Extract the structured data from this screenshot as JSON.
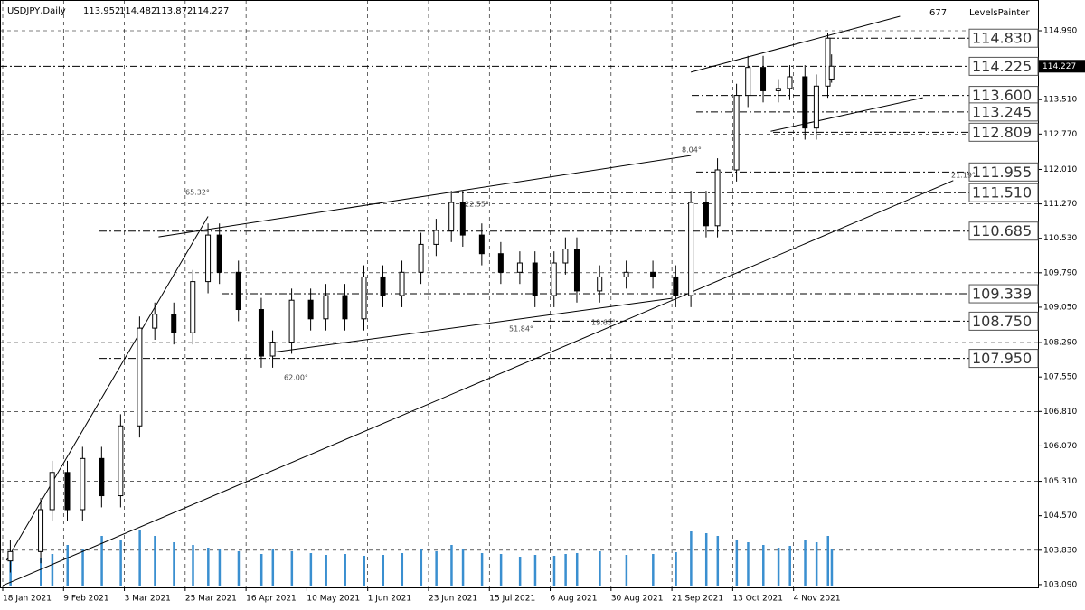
{
  "header": {
    "symbol": "USDJPY,Daily",
    "ohlc": [
      113.952,
      114.482,
      113.872,
      114.227
    ],
    "counter": "677",
    "indicator": "LevelsPainter"
  },
  "chart_data": {
    "type": "candlestick",
    "x": [
      2,
      10,
      13,
      17,
      21,
      26,
      31,
      36,
      40,
      45,
      50,
      54,
      57,
      62,
      68,
      71,
      76,
      81,
      85,
      90,
      95,
      100,
      105,
      110,
      114,
      118,
      121,
      126,
      131,
      136,
      140,
      145,
      148,
      151,
      157,
      164,
      171,
      177,
      181,
      185,
      188,
      193,
      196,
      200,
      204,
      207,
      211,
      214,
      217,
      218
    ],
    "open": [
      103.6,
      103.8,
      104.7,
      105.5,
      104.7,
      105.8,
      105.0,
      106.5,
      108.6,
      108.9,
      108.5,
      109.6,
      110.6,
      109.8,
      109.0,
      108.0,
      108.3,
      109.2,
      108.8,
      109.3,
      108.8,
      109.7,
      109.3,
      109.8,
      110.4,
      110.7,
      111.3,
      110.6,
      110.2,
      109.8,
      110.0,
      109.3,
      110.0,
      110.3,
      109.4,
      109.7,
      109.8,
      109.7,
      109.3,
      111.3,
      110.8,
      112.0,
      113.6,
      114.2,
      113.7,
      113.75,
      114.0,
      112.9,
      113.8,
      113.952
    ],
    "high": [
      104.05,
      104.95,
      105.75,
      105.75,
      106.05,
      106.05,
      106.75,
      108.85,
      109.15,
      109.15,
      109.85,
      110.85,
      110.85,
      110.05,
      109.25,
      108.55,
      109.45,
      109.45,
      109.55,
      109.55,
      109.95,
      109.95,
      110.05,
      110.65,
      110.95,
      111.55,
      111.55,
      110.85,
      110.45,
      110.25,
      110.25,
      110.25,
      110.55,
      110.55,
      109.95,
      110.05,
      110.05,
      109.95,
      111.55,
      111.55,
      112.25,
      113.85,
      114.45,
      114.45,
      113.95,
      114.25,
      114.25,
      114.05,
      114.95,
      114.482
    ],
    "low": [
      103.35,
      103.55,
      104.45,
      104.45,
      104.45,
      104.75,
      104.75,
      106.25,
      108.35,
      108.25,
      108.25,
      109.35,
      109.55,
      108.75,
      107.75,
      107.75,
      108.05,
      108.55,
      108.55,
      108.55,
      108.55,
      109.05,
      109.05,
      109.55,
      110.15,
      110.45,
      110.35,
      109.95,
      109.55,
      109.55,
      109.05,
      109.05,
      109.75,
      109.15,
      109.15,
      109.45,
      109.45,
      109.05,
      109.05,
      110.55,
      110.55,
      111.75,
      113.35,
      113.45,
      113.45,
      113.5,
      112.65,
      112.65,
      113.55,
      113.872
    ],
    "close": [
      103.8,
      104.7,
      105.5,
      104.7,
      105.8,
      105.0,
      106.5,
      108.6,
      108.9,
      108.5,
      109.6,
      110.6,
      109.8,
      109.0,
      108.0,
      108.3,
      109.2,
      108.8,
      109.3,
      108.8,
      109.7,
      109.3,
      109.8,
      110.4,
      110.7,
      111.3,
      110.6,
      110.2,
      109.8,
      110.0,
      109.3,
      110.0,
      110.3,
      109.4,
      109.7,
      109.8,
      109.7,
      109.3,
      111.3,
      110.8,
      112.0,
      113.6,
      114.2,
      113.7,
      113.75,
      114.0,
      112.9,
      113.8,
      114.83,
      114.227
    ],
    "volume": [
      28,
      30,
      35,
      45,
      40,
      55,
      50,
      62,
      55,
      48,
      45,
      42,
      40,
      38,
      35,
      40,
      38,
      36,
      34,
      35,
      33,
      34,
      36,
      40,
      38,
      45,
      40,
      36,
      35,
      32,
      34,
      33,
      35,
      36,
      38,
      34,
      35,
      37,
      60,
      58,
      55,
      50,
      48,
      45,
      42,
      44,
      50,
      48,
      55,
      40
    ],
    "volume_color": "#3a8fd0",
    "up_color": "#ffffff",
    "down_color": "#000000",
    "xlim": [
      0,
      273
    ],
    "ylim": [
      103.03,
      115.65
    ],
    "xticks": [
      {
        "value": 0,
        "label": "18 Jan 2021"
      },
      {
        "value": 16,
        "label": "9 Feb 2021"
      },
      {
        "value": 32,
        "label": "3 Mar 2021"
      },
      {
        "value": 48,
        "label": "25 Mar 2021"
      },
      {
        "value": 64,
        "label": "16 Apr 2021"
      },
      {
        "value": 80,
        "label": "10 May 2021"
      },
      {
        "value": 96,
        "label": "1 Jun 2021"
      },
      {
        "value": 112,
        "label": "23 Jun 2021"
      },
      {
        "value": 128,
        "label": "15 Jul 2021"
      },
      {
        "value": 144,
        "label": "6 Aug 2021"
      },
      {
        "value": 160,
        "label": "30 Aug 2021"
      },
      {
        "value": 176,
        "label": "21 Sep 2021"
      },
      {
        "value": 192,
        "label": "13 Oct 2021"
      },
      {
        "value": 208,
        "label": "4 Nov 2021"
      }
    ],
    "yticks": [
      {
        "value": 114.99,
        "label": "114.990"
      },
      {
        "value": 113.51,
        "label": "113.510"
      },
      {
        "value": 112.77,
        "label": "112.770"
      },
      {
        "value": 112.01,
        "label": "112.010"
      },
      {
        "value": 111.27,
        "label": "111.270"
      },
      {
        "value": 110.53,
        "label": "110.530"
      },
      {
        "value": 109.79,
        "label": "109.790"
      },
      {
        "value": 109.05,
        "label": "109.050"
      },
      {
        "value": 108.29,
        "label": "108.290"
      },
      {
        "value": 107.55,
        "label": "107.550"
      },
      {
        "value": 106.81,
        "label": "106.810"
      },
      {
        "value": 106.07,
        "label": "106.070"
      },
      {
        "value": 105.31,
        "label": "105.310"
      },
      {
        "value": 104.57,
        "label": "104.570"
      },
      {
        "value": 103.83,
        "label": "103.830"
      },
      {
        "value": 103.09,
        "label": "103.090"
      }
    ],
    "grid": true,
    "current_price": 114.227,
    "levels": [
      {
        "value": 114.83,
        "label": "114.830"
      },
      {
        "value": 114.225,
        "label": "114.225"
      },
      {
        "value": 113.6,
        "label": "113.600"
      },
      {
        "value": 113.245,
        "label": "113.245"
      },
      {
        "value": 112.809,
        "label": "112.809"
      },
      {
        "value": 111.955,
        "label": "111.955"
      },
      {
        "value": 111.51,
        "label": "111.510"
      },
      {
        "value": 110.685,
        "label": "110.685"
      },
      {
        "value": 109.339,
        "label": "109.339"
      },
      {
        "value": 108.75,
        "label": "108.750"
      },
      {
        "value": 107.95,
        "label": "107.950"
      }
    ],
    "trendlines": [
      {
        "x": [
          0,
          250
        ],
        "y": [
          103.07,
          111.77
        ]
      },
      {
        "x": [
          41,
          181
        ],
        "y": [
          110.56,
          112.31
        ]
      },
      {
        "x": [
          181,
          236
        ],
        "y": [
          114.1,
          115.3
        ]
      },
      {
        "x": [
          202,
          242
        ],
        "y": [
          112.83,
          113.55
        ]
      },
      {
        "x": [
          71,
          176
        ],
        "y": [
          108.08,
          109.24
        ]
      },
      {
        "x": [
          1,
          54
        ],
        "y": [
          103.61,
          111.0
        ]
      }
    ],
    "angles": [
      "65.32°",
      "62.00°",
      "22.55°",
      "51.84°",
      "19.65°",
      "8.04°",
      "21.19°"
    ]
  }
}
